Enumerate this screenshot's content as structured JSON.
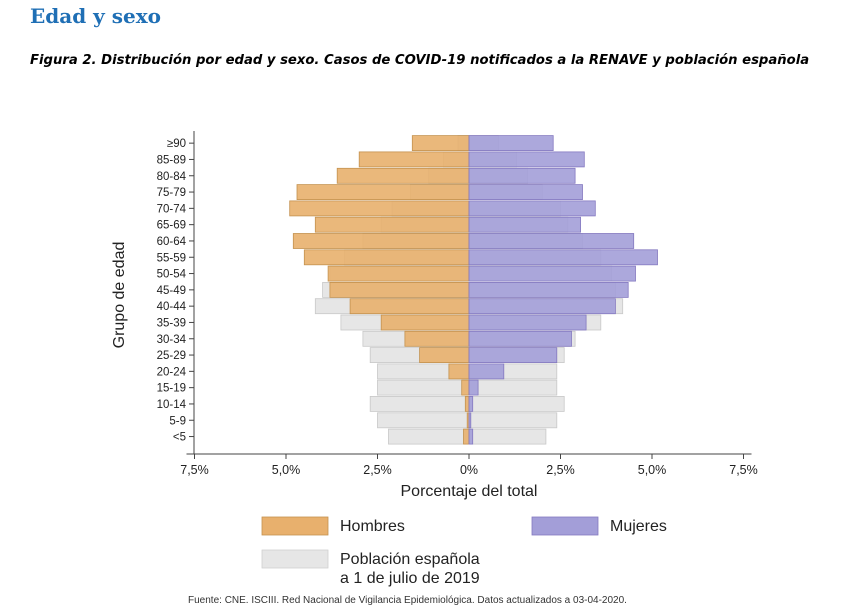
{
  "heading": "Edad y sexo",
  "figure_caption": "Figura 2. Distribución por edad y sexo. Casos de COVID-19 notificados a la RENAVE y población española",
  "footer": "Fuente: CNE. ISCIII. Red Nacional de Vigilancia Epidemiológica. Datos actualizados a 03-04-2020.",
  "colors": {
    "hombres": "#e8b06d",
    "mujeres": "#a39ed8",
    "poblacion": "#e6e6e6"
  },
  "chart_data": {
    "type": "bar",
    "orientation": "horizontal",
    "xlabel": "Porcentaje del total",
    "ylabel": "Grupo de edad",
    "xlim": [
      -7.5,
      7.5
    ],
    "xticks": [
      -7.5,
      -5,
      -2.5,
      0,
      2.5,
      5,
      7.5
    ],
    "xtick_labels": [
      "7,5%",
      "5,0%",
      "2,5%",
      "0%",
      "2,5%",
      "5,0%",
      "7,5%"
    ],
    "categories": [
      "<5",
      "5-9",
      "10-14",
      "15-19",
      "20-24",
      "25-29",
      "30-34",
      "35-39",
      "40-44",
      "45-49",
      "50-54",
      "55-59",
      "60-64",
      "65-69",
      "70-74",
      "75-79",
      "80-84",
      "85-89",
      "≥90"
    ],
    "grid": false,
    "legend_position": "bottom",
    "legend": [
      {
        "key": "hombres",
        "label": "Hombres"
      },
      {
        "key": "mujeres",
        "label": "Mujeres"
      },
      {
        "key": "poblacion",
        "label": "Población española\na 1 de julio de 2019"
      }
    ],
    "series": [
      {
        "name": "Población española a 1 de julio de 2019",
        "key": "pop_men",
        "values": [
          -2.2,
          -2.5,
          -2.7,
          -2.5,
          -2.5,
          -2.7,
          -2.9,
          -3.5,
          -4.2,
          -4.0,
          -3.8,
          -3.4,
          -2.9,
          -2.4,
          -2.1,
          -1.6,
          -1.1,
          -0.7,
          -0.3
        ]
      },
      {
        "name": "Población española a 1 de julio de 2019",
        "key": "pop_women",
        "values": [
          2.1,
          2.4,
          2.6,
          2.4,
          2.4,
          2.6,
          2.9,
          3.6,
          4.2,
          4.0,
          3.9,
          3.6,
          3.1,
          2.7,
          2.5,
          2.0,
          1.6,
          1.3,
          0.8
        ]
      },
      {
        "name": "Hombres",
        "key": "men",
        "values": [
          -0.15,
          -0.05,
          -0.1,
          -0.2,
          -0.55,
          -1.35,
          -1.75,
          -2.4,
          -3.25,
          -3.8,
          -3.85,
          -4.5,
          -4.8,
          -4.2,
          -4.9,
          -4.7,
          -3.6,
          -3.0,
          -1.55
        ]
      },
      {
        "name": "Mujeres",
        "key": "women",
        "values": [
          0.1,
          0.05,
          0.1,
          0.25,
          0.95,
          2.4,
          2.8,
          3.2,
          4.0,
          4.35,
          4.55,
          5.15,
          4.5,
          3.05,
          3.45,
          3.1,
          2.9,
          3.15,
          2.3
        ]
      }
    ]
  }
}
